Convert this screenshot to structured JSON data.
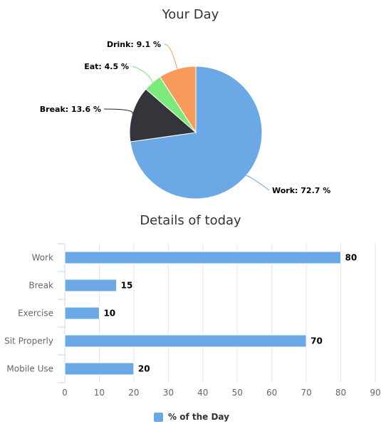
{
  "chart_data": [
    {
      "type": "pie",
      "title": "Your Day",
      "slices": [
        {
          "label": "Work",
          "value": 72.7,
          "display": "Work: 72.7 %",
          "color": "#6aa9e6"
        },
        {
          "label": "Break",
          "value": 13.6,
          "display": "Break: 13.6 %",
          "color": "#34343b"
        },
        {
          "label": "Eat",
          "value": 4.5,
          "display": "Eat: 4.5 %",
          "color": "#7bea7b"
        },
        {
          "label": "Drink",
          "value": 9.1,
          "display": "Drink: 9.1 %",
          "color": "#f79a5a"
        }
      ]
    },
    {
      "type": "bar",
      "orientation": "horizontal",
      "title": "Details of today",
      "categories": [
        "Work",
        "Break",
        "Exercise",
        "Sit Properly",
        "Mobile Use"
      ],
      "series": [
        {
          "name": "% of the Day",
          "values": [
            80,
            15,
            10,
            70,
            20
          ],
          "color": "#6aa9e6"
        }
      ],
      "xlim": [
        0,
        90
      ],
      "ticks": [
        0,
        10,
        20,
        30,
        40,
        50,
        60,
        70,
        80,
        90
      ],
      "grid": true,
      "legend": "bottom-center"
    }
  ]
}
